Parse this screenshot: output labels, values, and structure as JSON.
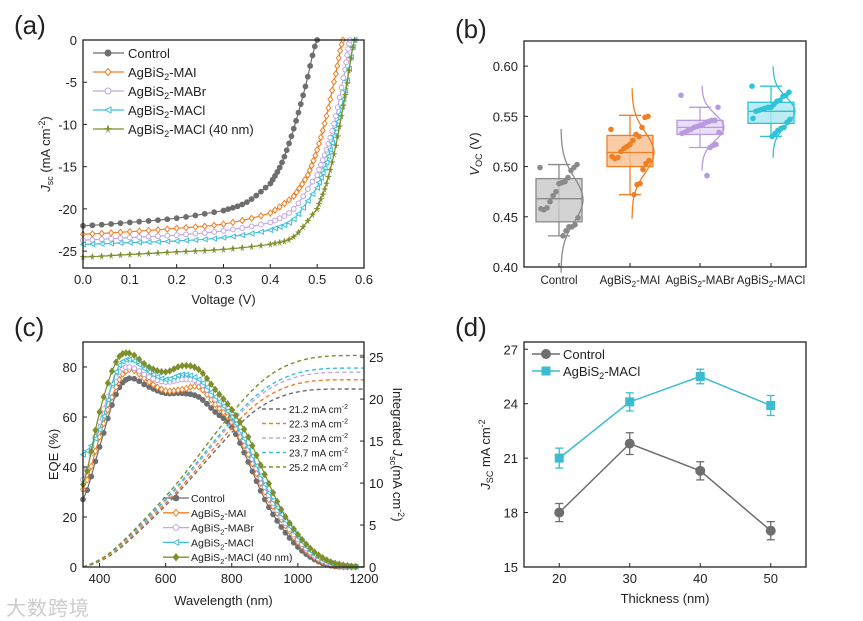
{
  "watermark": "大数跨境",
  "chart_data": [
    {
      "panel": "(a)",
      "type": "line",
      "xlabel": "Voltage (V)",
      "ylabel_main": "J",
      "ylabel_sub": "sc",
      "ylabel_rest": " (mA cm",
      "ylabel_sup": "-2",
      "ylabel_end": ")",
      "xlim": [
        0,
        0.6
      ],
      "ylim": [
        -27,
        0
      ],
      "xticks": [
        0,
        0.1,
        0.2,
        0.3,
        0.4,
        0.5,
        0.6
      ],
      "yticks": [
        0,
        -5,
        -10,
        -15,
        -20,
        -25
      ],
      "legend": "top-left",
      "series": [
        {
          "name": "Control",
          "color": "#6e6e6e",
          "marker": "filled-circle",
          "x": [
            0,
            0.1,
            0.2,
            0.3,
            0.35,
            0.4,
            0.425,
            0.45,
            0.475,
            0.5
          ],
          "y": [
            -22,
            -21.6,
            -21.1,
            -20.2,
            -19.2,
            -17,
            -14.5,
            -10.5,
            -5.5,
            0
          ]
        },
        {
          "name": "AgBiS2-MAI",
          "color": "#f07f24",
          "marker": "open-diamond",
          "x": [
            0,
            0.1,
            0.2,
            0.3,
            0.4,
            0.45,
            0.48,
            0.5,
            0.52,
            0.54,
            0.555
          ],
          "y": [
            -23,
            -22.7,
            -22.3,
            -21.8,
            -20.5,
            -18.5,
            -16,
            -13,
            -9,
            -4,
            0
          ]
        },
        {
          "name": "AgBiS2-MABr",
          "color": "#c1a6e0",
          "marker": "open-circle",
          "x": [
            0,
            0.1,
            0.2,
            0.3,
            0.4,
            0.45,
            0.5,
            0.52,
            0.54,
            0.56,
            0.57
          ],
          "y": [
            -23.7,
            -23.4,
            -23.1,
            -22.6,
            -21.6,
            -20,
            -16,
            -13,
            -9,
            -3.5,
            0
          ]
        },
        {
          "name": "AgBiS2-MACl",
          "color": "#3cc0d6",
          "marker": "open-triangle-left",
          "x": [
            0,
            0.1,
            0.2,
            0.3,
            0.4,
            0.45,
            0.5,
            0.52,
            0.54,
            0.56,
            0.58
          ],
          "y": [
            -24.2,
            -24,
            -23.8,
            -23.4,
            -22.5,
            -21.2,
            -17.5,
            -14.5,
            -10.5,
            -6,
            0
          ]
        },
        {
          "name": "AgBiS2-MACl (40 nm)",
          "color": "#7e8f2c",
          "marker": "filled-star",
          "x": [
            0,
            0.1,
            0.2,
            0.3,
            0.4,
            0.45,
            0.5,
            0.52,
            0.54,
            0.56,
            0.58
          ],
          "y": [
            -25.7,
            -25.4,
            -25.1,
            -24.8,
            -24.2,
            -23.3,
            -20,
            -17,
            -12.5,
            -6.5,
            0
          ]
        }
      ]
    },
    {
      "panel": "(b)",
      "type": "box",
      "ylabel_main": "V",
      "ylabel_sub": "OC",
      "ylabel_rest": " (V)",
      "ylim": [
        0.4,
        0.625
      ],
      "yticks": [
        0.4,
        0.45,
        0.5,
        0.55,
        0.6
      ],
      "categories": [
        "Control",
        "AgBiS2-MAI",
        "AgBiS2-MABr",
        "AgBiS2-MACl"
      ],
      "boxes": [
        {
          "color": "#8a8a8a",
          "fill": "#c8c8c8",
          "min": 0.431,
          "q1": 0.445,
          "median": 0.468,
          "q3": 0.488,
          "max": 0.502,
          "mean": 0.467,
          "sd": 0.022,
          "points": [
            0.499,
            0.502,
            0.499,
            0.496,
            0.489,
            0.485,
            0.484,
            0.483,
            0.475,
            0.471,
            0.465,
            0.459,
            0.457,
            0.458,
            0.449,
            0.442,
            0.44,
            0.44,
            0.436,
            0.431
          ]
        },
        {
          "color": "#f07f24",
          "fill": "#f7bf90",
          "min": 0.472,
          "q1": 0.5,
          "median": 0.514,
          "q3": 0.531,
          "max": 0.551,
          "mean": 0.514,
          "sd": 0.02,
          "points": [
            0.537,
            0.55,
            0.549,
            0.539,
            0.53,
            0.532,
            0.526,
            0.522,
            0.52,
            0.518,
            0.515,
            0.509,
            0.508,
            0.51,
            0.506,
            0.503,
            0.497,
            0.483,
            0.482,
            0.472
          ]
        },
        {
          "color": "#b89ae0",
          "fill": "#e3d6f5",
          "min": 0.519,
          "q1": 0.532,
          "median": 0.539,
          "q3": 0.546,
          "max": 0.559,
          "mean": 0.539,
          "sd": 0.013,
          "points": [
            0.571,
            0.559,
            0.546,
            0.546,
            0.545,
            0.544,
            0.542,
            0.541,
            0.54,
            0.539,
            0.537,
            0.536,
            0.534,
            0.533,
            0.534,
            0.522,
            0.521,
            0.519,
            0.491
          ]
        },
        {
          "color": "#2ec3d8",
          "fill": "#a9e7ef",
          "min": 0.53,
          "q1": 0.543,
          "median": 0.555,
          "q3": 0.564,
          "max": 0.58,
          "mean": 0.555,
          "sd": 0.014,
          "points": [
            0.58,
            0.574,
            0.571,
            0.57,
            0.566,
            0.565,
            0.562,
            0.559,
            0.559,
            0.558,
            0.557,
            0.556,
            0.555,
            0.548,
            0.547,
            0.544,
            0.539,
            0.538,
            0.536,
            0.533,
            0.53
          ]
        }
      ]
    },
    {
      "panel": "(c)",
      "type": "line",
      "xlabel": "Wavelength (nm)",
      "ylabel": "EQE (%)",
      "ylabel2_main": "Integrated J",
      "ylabel2_sub": "sc",
      "ylabel2_rest": "(mA cm",
      "ylabel2_sup": "-2",
      "ylabel2_end": ")",
      "xlim": [
        350,
        1200
      ],
      "ylim": [
        0,
        90
      ],
      "y2lim": [
        0,
        26.8
      ],
      "xticks": [
        400,
        600,
        800,
        1000,
        1200
      ],
      "yticks": [
        0,
        20,
        40,
        60,
        80
      ],
      "y2ticks": [
        0,
        5,
        10,
        15,
        20,
        25
      ],
      "legend": "bottom-center",
      "x": [
        350,
        400,
        450,
        490,
        550,
        600,
        650,
        700,
        750,
        800,
        850,
        900,
        950,
        1000,
        1050,
        1100,
        1150,
        1200
      ],
      "series": [
        {
          "name": "Control",
          "color": "#6e6e6e",
          "marker": "filled-circle",
          "eqe": [
            27,
            48,
            69,
            75.5,
            72,
            69.5,
            69.5,
            68,
            62,
            56,
            42,
            27,
            16,
            8,
            3,
            0.5,
            0,
            0
          ],
          "integrated_label": "21.2 mA cm",
          "integrated": 21.2
        },
        {
          "name": "AgBiS2-MAI",
          "color": "#f07f24",
          "marker": "open-diamond",
          "eqe": [
            31,
            52,
            72,
            79,
            74,
            70.5,
            71,
            72,
            65,
            58,
            45,
            30,
            19,
            10,
            4,
            1,
            0,
            0
          ],
          "integrated_label": "22.3 mA cm",
          "integrated": 22.3
        },
        {
          "name": "AgBiS2-MABr",
          "color": "#c1a6e0",
          "marker": "open-circle",
          "eqe": [
            35,
            58,
            76,
            80,
            76,
            74,
            75,
            74,
            67,
            60,
            47,
            32,
            20,
            11,
            4.5,
            1.2,
            0.2,
            0
          ],
          "integrated_label": "23.2 mA cm",
          "integrated": 23.2
        },
        {
          "name": "AgBiS2-MACl",
          "color": "#3cc0d6",
          "marker": "open-triangle-left",
          "eqe": [
            45,
            55,
            78,
            83,
            78,
            75,
            77,
            75,
            68,
            60,
            48,
            33,
            21,
            12,
            5,
            1.5,
            0.3,
            0
          ],
          "integrated_label": "23.7 mA cm",
          "integrated": 23.7
        },
        {
          "name": "AgBiS2-MACl (40 nm)",
          "color": "#7e8f2c",
          "marker": "filled-diamond",
          "eqe": [
            33,
            62,
            82,
            85.5,
            80,
            78,
            80.5,
            79,
            71,
            63,
            52,
            37,
            23,
            13,
            6,
            2,
            0.5,
            0
          ],
          "integrated_label": "25.2 mA cm",
          "integrated": 25.2
        }
      ]
    },
    {
      "panel": "(d)",
      "type": "line",
      "xlabel": "Thickness (nm)",
      "ylabel_main": "J",
      "ylabel_sub": "SC",
      "ylabel_rest": " mA cm",
      "ylabel_sup": "-2",
      "ylabel_end": "",
      "xlim": [
        15,
        55
      ],
      "ylim": [
        15,
        27.4
      ],
      "xticks": [
        20,
        30,
        40,
        50
      ],
      "yticks": [
        15,
        18,
        21,
        24,
        27
      ],
      "legend": "top-left",
      "x": [
        20,
        30,
        40,
        50
      ],
      "series": [
        {
          "name": "Control",
          "color": "#6e6e6e",
          "marker": "circle",
          "y": [
            18,
            21.8,
            20.3,
            17
          ],
          "err": [
            0.5,
            0.6,
            0.5,
            0.5
          ]
        },
        {
          "name": "AgBiS2-MACl",
          "color": "#3cbccf",
          "marker": "square",
          "y": [
            21,
            24.1,
            25.5,
            23.9
          ],
          "err": [
            0.55,
            0.5,
            0.4,
            0.55
          ]
        }
      ]
    }
  ]
}
